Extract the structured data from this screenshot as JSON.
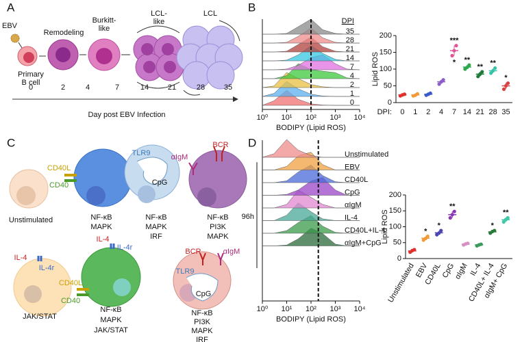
{
  "panels": [
    "A",
    "B",
    "C",
    "D"
  ],
  "panel_a": {
    "cells": [
      [
        "EBV"
      ],
      [
        "Primary",
        "B cell"
      ],
      [
        "Remodeling"
      ],
      [
        "Burkitt-",
        "like"
      ],
      [
        "LCL-",
        "like"
      ],
      [
        "LCL"
      ]
    ],
    "timeline": {
      "ticks": [
        0,
        2,
        4,
        7,
        14,
        21,
        28,
        35
      ],
      "label": "Day post EBV Infection"
    }
  },
  "panel_c": {
    "labels": [
      "Unstimulated",
      "CD40L",
      "CD40",
      "NF-κB",
      "MAPK",
      "TLR9",
      "CpG",
      "NF-κB",
      "MAPK",
      "IRF",
      "αIgM",
      "BCR",
      "NF-κB",
      "PI3K",
      "MAPK",
      "IL-4",
      "IL-4r",
      "JAK/STAT",
      "IL-4",
      "IL-4r",
      "CD40L",
      "CD40",
      "NF-κB",
      "MAPK",
      "JAK/STAT",
      "BCR",
      "αIgM",
      "TLR9",
      "CpG",
      "NF-κB",
      "PI3K",
      "MAPK",
      "IRF"
    ]
  },
  "chart_data": [
    {
      "type": "ridgeline",
      "xlabel": "BODIPY (Lipid ROS)",
      "legend_title": "DPI",
      "log_x": true,
      "xlim": [
        1,
        10000
      ],
      "xticks": [
        {
          "value": 1,
          "label": "10⁰"
        },
        {
          "value": 10,
          "label": "10¹"
        },
        {
          "value": 100,
          "label": "10²"
        },
        {
          "value": 1000,
          "label": "10³"
        },
        {
          "value": 10000,
          "label": "10⁴"
        }
      ],
      "threshold": 100,
      "x": [
        1,
        3,
        10,
        30,
        100,
        300,
        1000,
        3000,
        10000
      ],
      "series": [
        {
          "name": "35",
          "color": "#8a8a8a",
          "values": [
            0,
            0,
            0.05,
            0.5,
            1,
            0.3,
            0.05,
            0,
            0
          ]
        },
        {
          "name": "28",
          "color": "#f08c8c",
          "values": [
            0,
            0,
            0.05,
            0.45,
            1,
            0.35,
            0.05,
            0,
            0
          ]
        },
        {
          "name": "21",
          "color": "#b0413e",
          "values": [
            0,
            0,
            0.05,
            0.5,
            1,
            0.35,
            0.05,
            0,
            0
          ]
        },
        {
          "name": "14",
          "color": "#35c8e0",
          "values": [
            0,
            0,
            0.05,
            0.4,
            1,
            0.5,
            0.1,
            0,
            0
          ]
        },
        {
          "name": "7",
          "color": "#e070e0",
          "values": [
            0,
            0,
            0.05,
            0.3,
            0.8,
            1,
            0.4,
            0.05,
            0
          ]
        },
        {
          "name": "4",
          "color": "#3cc83c",
          "values": [
            0,
            0,
            0.2,
            1,
            0.6,
            0.5,
            0.4,
            0.05,
            0
          ]
        },
        {
          "name": "2",
          "color": "#e8c040",
          "values": [
            0,
            0.1,
            1,
            0.6,
            0.2,
            0.05,
            0,
            0,
            0
          ]
        },
        {
          "name": "1",
          "color": "#5ab0f0",
          "values": [
            0,
            0.2,
            1,
            0.5,
            0.15,
            0.03,
            0,
            0,
            0
          ]
        },
        {
          "name": "0",
          "color": "#f07070",
          "values": [
            0,
            0.3,
            1,
            0.4,
            0.1,
            0.02,
            0,
            0,
            0
          ]
        }
      ]
    },
    {
      "type": "dot",
      "ylabel": "Lipid ROS",
      "xlabel": "DPI:",
      "rotate_labels": false,
      "ylim": [
        0,
        200
      ],
      "yticks": [
        0,
        50,
        100,
        150,
        200
      ],
      "categories": [
        "0",
        "1",
        "2",
        "4",
        "7",
        "14",
        "21",
        "28",
        "35"
      ],
      "colors": [
        "#e0312f",
        "#f29b38",
        "#3b5bc9",
        "#8c5fc7",
        "#e0559a",
        "#2fa84f",
        "#1f7a3a",
        "#39c2a8",
        "#d94040"
      ],
      "values": [
        23,
        23,
        25,
        62,
        155,
        106,
        85,
        95,
        50
      ],
      "errors": [
        3,
        3,
        3,
        6,
        15,
        6,
        7,
        7,
        9
      ],
      "points": [
        [
          20,
          23,
          25
        ],
        [
          20,
          22,
          26
        ],
        [
          22,
          25,
          28
        ],
        [
          55,
          62,
          68
        ],
        [
          140,
          155,
          170
        ],
        [
          100,
          105,
          112
        ],
        [
          78,
          85,
          92
        ],
        [
          88,
          95,
          103
        ],
        [
          40,
          50,
          58
        ]
      ],
      "significance": [
        null,
        null,
        null,
        null,
        "***",
        "**",
        "**",
        "**",
        "*"
      ],
      "significance_below": [
        null,
        null,
        null,
        null,
        "*",
        null,
        null,
        null,
        null
      ]
    },
    {
      "type": "ridgeline",
      "xlabel": "BODIPY (Lipid ROS)",
      "group_label": "96h",
      "log_x": true,
      "xlim": [
        1,
        10000
      ],
      "xticks": [
        {
          "value": 1,
          "label": "10⁰"
        },
        {
          "value": 10,
          "label": "10¹"
        },
        {
          "value": 100,
          "label": "10²"
        },
        {
          "value": 1000,
          "label": "10³"
        },
        {
          "value": 10000,
          "label": "10⁴"
        }
      ],
      "threshold": 200,
      "x": [
        1,
        3,
        10,
        30,
        100,
        300,
        1000,
        3000,
        10000
      ],
      "series": [
        {
          "name": "Unstimulated",
          "color": "#f08c8c",
          "values": [
            0,
            0.2,
            1,
            0.4,
            0.1,
            0,
            0,
            0,
            0
          ]
        },
        {
          "name": "EBV",
          "color": "#f0a040",
          "values": [
            0,
            0,
            0.2,
            0.8,
            1,
            0.3,
            0,
            0,
            0
          ]
        },
        {
          "name": "CD40L",
          "color": "#4a6ad8",
          "values": [
            0,
            0,
            0.1,
            0.6,
            1,
            0.4,
            0.05,
            0,
            0
          ]
        },
        {
          "name": "CpG",
          "color": "#9b45c8",
          "values": [
            0,
            0,
            0.05,
            0.3,
            0.8,
            1,
            0.3,
            0,
            0
          ]
        },
        {
          "name": "αIgM",
          "color": "#e088d0",
          "values": [
            0,
            0,
            0.2,
            1,
            0.6,
            0.2,
            0,
            0,
            0
          ]
        },
        {
          "name": "IL-4",
          "color": "#48a898",
          "values": [
            0,
            0,
            0.3,
            1,
            0.5,
            0.1,
            0,
            0,
            0
          ]
        },
        {
          "name": "CD40L+IL-4",
          "color": "#3a9a4a",
          "values": [
            0,
            0,
            0.15,
            0.6,
            1,
            0.4,
            0.05,
            0,
            0
          ]
        },
        {
          "name": "αIgM+CpG",
          "color": "#2a6a3a",
          "values": [
            0,
            0,
            0.05,
            0.4,
            1,
            0.7,
            0.1,
            0,
            0
          ]
        }
      ]
    },
    {
      "type": "dot",
      "ylabel": "Lipid ROS",
      "rotate_labels": true,
      "ylim": [
        0,
        200
      ],
      "yticks": [
        0,
        50,
        100,
        150,
        200
      ],
      "categories": [
        "Unstimulated",
        "EBV",
        "CD40L",
        "CpG",
        "αIgM",
        "IL-4",
        "CD40L+ IL-4",
        "αIgM+ CpG"
      ],
      "colors": [
        "#e0312f",
        "#f29b38",
        "#4a45b0",
        "#8b35b5",
        "#d78fc4",
        "#3a9a5a",
        "#2a7a3a",
        "#40c8a8"
      ],
      "values": [
        24,
        64,
        81,
        138,
        45,
        43,
        84,
        122
      ],
      "errors": [
        4,
        6,
        6,
        10,
        3,
        3,
        4,
        7
      ],
      "points": [
        [
          20,
          25,
          28
        ],
        [
          58,
          63,
          70
        ],
        [
          75,
          80,
          88
        ],
        [
          128,
          138,
          148
        ],
        [
          43,
          46,
          48
        ],
        [
          40,
          43,
          45
        ],
        [
          80,
          85,
          88
        ],
        [
          115,
          122,
          128
        ]
      ],
      "significance": [
        null,
        "*",
        "*",
        "**",
        null,
        null,
        "*",
        "**"
      ],
      "significance_below": [
        null,
        null,
        null,
        null,
        null,
        null,
        null,
        null
      ]
    }
  ]
}
